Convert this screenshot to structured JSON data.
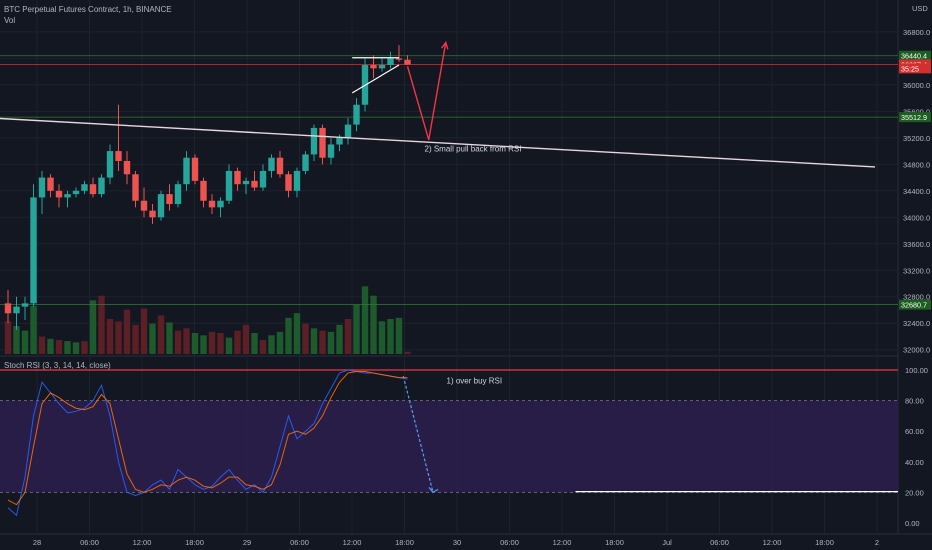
{
  "header": {
    "symbol": "BTC Perpetual Futures Contract, 1h, BINANCE",
    "volume_label": "Vol",
    "rsi_label": "Stoch RSI (3, 3, 14, 14, close)"
  },
  "colors": {
    "background": "#131722",
    "up": "#26a69a",
    "down": "#ef5350",
    "vol_up": "#1e5b2c",
    "vol_down": "#5b1f25",
    "grid": "#1e222d",
    "rsi_band": "#2a1e4a",
    "k_line": "#2962ff",
    "d_line": "#ff6d00",
    "trendline": "#e8d7dc",
    "annotation": "#f23645",
    "hline_green": "#1b5e20",
    "hline_red": "#b71c1c"
  },
  "chart_data": [
    {
      "type": "candlestick",
      "title": "BTC Perpetual Futures Contract, 1h, BINANCE",
      "currency": "USD",
      "price_ticks": [
        "36800.0",
        "36400.0",
        "36000.0",
        "35600.0",
        "35200.0",
        "34800.0",
        "34400.0",
        "34000.0",
        "33600.0",
        "33200.0",
        "32800.0",
        "32400.0",
        "32000.0"
      ],
      "time_ticks": [
        "28",
        "06:00",
        "12:00",
        "18:00",
        "29",
        "06:00",
        "12:00",
        "18:00",
        "30",
        "06:00",
        "12:00",
        "18:00",
        "Jul",
        "06:00",
        "12:00",
        "18:00",
        "2"
      ],
      "price_labels": [
        {
          "value": 36440.4,
          "text": "36440.4",
          "kind": "green"
        },
        {
          "value": 36307.4,
          "text": "36307.4",
          "kind": "red"
        },
        {
          "value": 36250,
          "text": "35:25",
          "kind": "red"
        },
        {
          "value": 35512.9,
          "text": "35512.9",
          "kind": "green"
        },
        {
          "value": 32680.7,
          "text": "32680.7",
          "kind": "green"
        }
      ],
      "hlines": [
        {
          "value": 36440.4,
          "kind": "green"
        },
        {
          "value": 36307.4,
          "kind": "red"
        },
        {
          "value": 35512.9,
          "kind": "green"
        },
        {
          "value": 32680.7,
          "kind": "green"
        }
      ],
      "trendline": {
        "from": {
          "bar": -2,
          "price": 35500
        },
        "to": {
          "bar": 102,
          "price": 34760
        }
      },
      "annotations": [
        {
          "text": "2) Small pull back from RSI",
          "bar": 49,
          "price": 35040
        }
      ],
      "projection": [
        {
          "bar": 47,
          "price": 36280
        },
        {
          "bar": 49.5,
          "price": 35170
        },
        {
          "bar": 51.5,
          "price": 36640
        }
      ],
      "pattern": {
        "top": [
          {
            "bar": 40.5,
            "price": 36410
          },
          {
            "bar": 46,
            "price": 36410
          }
        ],
        "bottom": [
          {
            "bar": 40.5,
            "price": 35880
          },
          {
            "bar": 46,
            "price": 36300
          }
        ]
      },
      "candles": [
        [
          32700,
          32900,
          32400,
          32550
        ],
        [
          32550,
          32800,
          32300,
          32650
        ],
        [
          32650,
          32800,
          32450,
          32700
        ],
        [
          32700,
          34500,
          32650,
          34300
        ],
        [
          34300,
          34700,
          34050,
          34600
        ],
        [
          34600,
          34650,
          34300,
          34400
        ],
        [
          34400,
          34500,
          34150,
          34300
        ],
        [
          34300,
          34400,
          34150,
          34350
        ],
        [
          34350,
          34450,
          34300,
          34400
        ],
        [
          34400,
          34550,
          34350,
          34500
        ],
        [
          34500,
          34600,
          34300,
          34350
        ],
        [
          34350,
          34650,
          34300,
          34600
        ],
        [
          34600,
          35100,
          34500,
          35000
        ],
        [
          35000,
          35700,
          34700,
          34850
        ],
        [
          34850,
          35000,
          34500,
          34650
        ],
        [
          34650,
          34700,
          34150,
          34250
        ],
        [
          34250,
          34450,
          34000,
          34100
        ],
        [
          34100,
          34200,
          33900,
          34000
        ],
        [
          34000,
          34400,
          33950,
          34350
        ],
        [
          34350,
          34500,
          34100,
          34200
        ],
        [
          34200,
          34550,
          34150,
          34500
        ],
        [
          34500,
          35000,
          34400,
          34900
        ],
        [
          34900,
          34950,
          34500,
          34550
        ],
        [
          34550,
          34600,
          34150,
          34250
        ],
        [
          34250,
          34350,
          34050,
          34150
        ],
        [
          34150,
          34300,
          34000,
          34250
        ],
        [
          34250,
          34800,
          34200,
          34700
        ],
        [
          34700,
          34750,
          34400,
          34500
        ],
        [
          34500,
          34600,
          34350,
          34550
        ],
        [
          34550,
          34700,
          34400,
          34450
        ],
        [
          34450,
          34800,
          34400,
          34700
        ],
        [
          34700,
          34950,
          34600,
          34900
        ],
        [
          34900,
          35000,
          34600,
          34650
        ],
        [
          34650,
          34700,
          34300,
          34400
        ],
        [
          34400,
          34750,
          34300,
          34700
        ],
        [
          34700,
          35000,
          34650,
          34950
        ],
        [
          34950,
          35400,
          34850,
          35350
        ],
        [
          35350,
          35400,
          34800,
          34900
        ],
        [
          34900,
          35200,
          34800,
          35100
        ],
        [
          35100,
          35250,
          35000,
          35200
        ],
        [
          35200,
          35500,
          35100,
          35400
        ],
        [
          35400,
          35800,
          35300,
          35700
        ],
        [
          35700,
          36400,
          35600,
          36300
        ],
        [
          36300,
          36450,
          36100,
          36250
        ],
        [
          36250,
          36400,
          36200,
          36300
        ],
        [
          36300,
          36500,
          36250,
          36400
        ],
        [
          36400,
          36600,
          36350,
          36380
        ],
        [
          36380,
          36450,
          36300,
          36307
        ]
      ],
      "volumes": [
        [
          280,
          "down"
        ],
        [
          240,
          "up"
        ],
        [
          200,
          "up"
        ],
        [
          410,
          "up"
        ],
        [
          150,
          "down"
        ],
        [
          130,
          "up"
        ],
        [
          120,
          "down"
        ],
        [
          110,
          "up"
        ],
        [
          100,
          "up"
        ],
        [
          110,
          "down"
        ],
        [
          460,
          "up"
        ],
        [
          500,
          "down"
        ],
        [
          300,
          "down"
        ],
        [
          280,
          "down"
        ],
        [
          380,
          "down"
        ],
        [
          250,
          "down"
        ],
        [
          390,
          "down"
        ],
        [
          260,
          "up"
        ],
        [
          330,
          "down"
        ],
        [
          270,
          "up"
        ],
        [
          200,
          "down"
        ],
        [
          220,
          "down"
        ],
        [
          180,
          "up"
        ],
        [
          160,
          "up"
        ],
        [
          190,
          "down"
        ],
        [
          180,
          "down"
        ],
        [
          140,
          "up"
        ],
        [
          200,
          "down"
        ],
        [
          250,
          "down"
        ],
        [
          180,
          "up"
        ],
        [
          120,
          "down"
        ],
        [
          160,
          "up"
        ],
        [
          190,
          "up"
        ],
        [
          310,
          "up"
        ],
        [
          350,
          "up"
        ],
        [
          260,
          "down"
        ],
        [
          220,
          "up"
        ],
        [
          200,
          "down"
        ],
        [
          190,
          "up"
        ],
        [
          250,
          "up"
        ],
        [
          300,
          "down"
        ],
        [
          420,
          "up"
        ],
        [
          580,
          "up"
        ],
        [
          500,
          "up"
        ],
        [
          280,
          "up"
        ],
        [
          300,
          "up"
        ],
        [
          310,
          "up"
        ],
        [
          20,
          "down"
        ]
      ]
    },
    {
      "type": "line",
      "title": "Stoch RSI (3, 3, 14, 14, close)",
      "y_ticks": [
        "100.00",
        "80.00",
        "60.00",
        "40.00",
        "20.00",
        "0.00"
      ],
      "ylim": [
        0,
        100
      ],
      "band": [
        20,
        80
      ],
      "annotations": [
        {
          "text": "1) over buy RSI",
          "bar": 49,
          "value": 93
        }
      ],
      "hline_100": {
        "value": 100,
        "kind": "red"
      },
      "target_line": {
        "from_bar": 55,
        "value": 20.5
      },
      "arrow": {
        "from": {
          "bar": 46.5,
          "value": 96
        },
        "to": {
          "bar": 50,
          "value": 20
        }
      },
      "series": [
        {
          "name": "K",
          "values": [
            10,
            5,
            30,
            70,
            92,
            85,
            78,
            72,
            73,
            75,
            80,
            90,
            70,
            40,
            20,
            18,
            20,
            25,
            28,
            22,
            35,
            30,
            25,
            22,
            24,
            30,
            35,
            28,
            22,
            25,
            20,
            30,
            50,
            70,
            55,
            60,
            65,
            78,
            88,
            98,
            100,
            99,
            98,
            98,
            97,
            96,
            95,
            94
          ]
        },
        {
          "name": "D",
          "values": [
            15,
            12,
            20,
            50,
            78,
            85,
            82,
            78,
            75,
            74,
            76,
            84,
            78,
            55,
            32,
            22,
            20,
            22,
            25,
            24,
            28,
            30,
            28,
            24,
            23,
            26,
            30,
            30,
            25,
            24,
            22,
            25,
            38,
            58,
            60,
            58,
            62,
            70,
            82,
            92,
            98,
            99,
            99,
            98,
            97,
            96,
            95,
            95
          ]
        }
      ]
    }
  ]
}
